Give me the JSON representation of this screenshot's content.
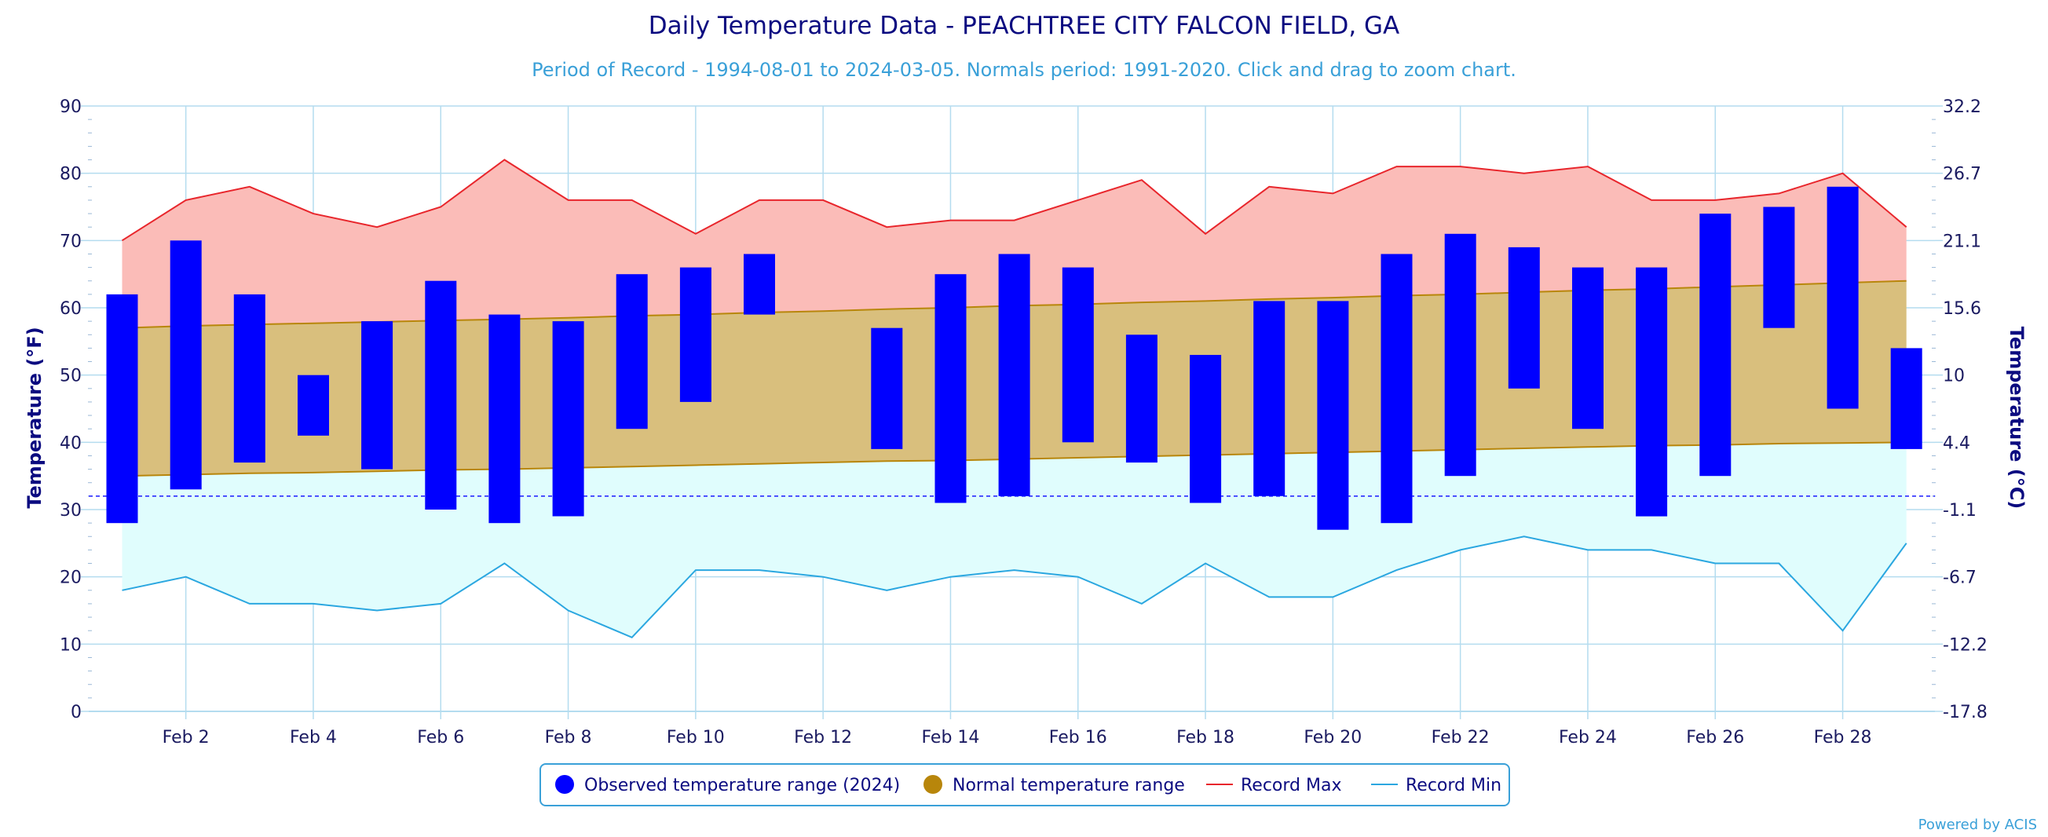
{
  "chart_data": {
    "type": "bar",
    "title": "Daily Temperature Data - PEACHTREE CITY FALCON FIELD, GA",
    "subtitle": "Period of Record - 1994-08-01 to 2024-03-05. Normals period: 1991-2020. Click and drag to zoom chart.",
    "ylabel_left": "Temperature (°F)",
    "ylabel_right": "Temperature (°C)",
    "ylim": [
      0,
      90
    ],
    "y_ticks_left": [
      "0",
      "10",
      "20",
      "30",
      "40",
      "50",
      "60",
      "70",
      "80",
      "90"
    ],
    "y_ticks_right": [
      "-17.8",
      "-12.2",
      "-6.7",
      "-1.1",
      "4.4",
      "10",
      "15.6",
      "21.1",
      "26.7",
      "32.2"
    ],
    "x_tick_labels": [
      "Feb 2",
      "Feb 4",
      "Feb 6",
      "Feb 8",
      "Feb 10",
      "Feb 12",
      "Feb 14",
      "Feb 16",
      "Feb 18",
      "Feb 20",
      "Feb 22",
      "Feb 24",
      "Feb 26",
      "Feb 28"
    ],
    "x_tick_days": [
      2,
      4,
      6,
      8,
      10,
      12,
      14,
      16,
      18,
      20,
      22,
      24,
      26,
      28
    ],
    "freezing_line": 32,
    "days": [
      1,
      2,
      3,
      4,
      5,
      6,
      7,
      8,
      9,
      10,
      11,
      12,
      13,
      14,
      15,
      16,
      17,
      18,
      19,
      20,
      21,
      22,
      23,
      24,
      25,
      26,
      27,
      28,
      29
    ],
    "observed": [
      [
        28,
        62
      ],
      [
        33,
        70
      ],
      [
        37,
        62
      ],
      [
        41,
        50
      ],
      [
        36,
        58
      ],
      [
        30,
        64
      ],
      [
        28,
        59
      ],
      [
        29,
        58
      ],
      [
        42,
        65
      ],
      [
        46,
        66
      ],
      [
        59,
        68
      ],
      null,
      [
        39,
        57
      ],
      [
        31,
        65
      ],
      [
        32,
        68
      ],
      [
        40,
        66
      ],
      [
        37,
        56
      ],
      [
        31,
        53
      ],
      [
        32,
        61
      ],
      [
        27,
        61
      ],
      [
        28,
        68
      ],
      [
        35,
        71
      ],
      [
        48,
        69
      ],
      [
        42,
        66
      ],
      [
        29,
        66
      ],
      [
        35,
        74
      ],
      [
        57,
        75
      ],
      [
        45,
        78
      ],
      [
        39,
        54
      ]
    ],
    "normal_max": [
      57,
      57.3,
      57.5,
      57.7,
      57.9,
      58.1,
      58.3,
      58.5,
      58.8,
      59,
      59.3,
      59.5,
      59.8,
      60,
      60.3,
      60.5,
      60.8,
      61,
      61.3,
      61.5,
      61.8,
      62,
      62.3,
      62.6,
      62.8,
      63.1,
      63.4,
      63.7,
      64
    ],
    "normal_min": [
      35,
      35.2,
      35.4,
      35.5,
      35.7,
      35.9,
      36,
      36.2,
      36.4,
      36.6,
      36.8,
      37,
      37.2,
      37.3,
      37.5,
      37.7,
      37.9,
      38.1,
      38.3,
      38.5,
      38.7,
      38.9,
      39.1,
      39.3,
      39.5,
      39.6,
      39.8,
      39.9,
      40
    ],
    "record_max": [
      70,
      76,
      78,
      74,
      72,
      75,
      82,
      76,
      76,
      71,
      76,
      76,
      72,
      73,
      73,
      76,
      79,
      71,
      78,
      77,
      81,
      81,
      80,
      81,
      76,
      76,
      77,
      80,
      72
    ],
    "record_min": [
      18,
      20,
      16,
      16,
      15,
      16,
      22,
      15,
      11,
      21,
      21,
      20,
      18,
      20,
      21,
      20,
      16,
      22,
      17,
      17,
      21,
      24,
      26,
      24,
      24,
      22,
      22,
      12,
      25
    ],
    "colors": {
      "observed": "#0000ff",
      "normal_fill": "#d9bf7d",
      "normal_line": "#b8860b",
      "record_max_line": "#e8262c",
      "record_max_fill": "#fbbcb8",
      "record_min_line": "#2ba7e0",
      "record_min_fill": "#e0fdfd",
      "grid": "#b4dcef",
      "freezing": "#1a1aff"
    },
    "legend": {
      "position": "bottom-center",
      "items": [
        {
          "label": "Observed temperature range (2024)",
          "symbol": "dot",
          "color": "#0000ff"
        },
        {
          "label": "Normal temperature range",
          "symbol": "dot",
          "color": "#b8860b"
        },
        {
          "label": "Record Max",
          "symbol": "line",
          "color": "#e8262c"
        },
        {
          "label": "Record Min",
          "symbol": "line",
          "color": "#2ba7e0"
        }
      ]
    },
    "credits": "Powered by ACIS"
  }
}
